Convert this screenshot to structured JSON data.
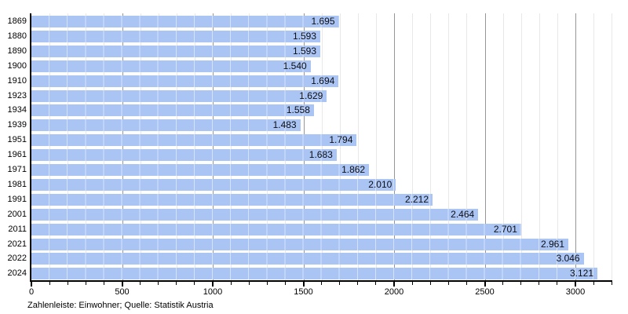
{
  "caption": "Zahlenleiste: Einwohner; Quelle: Statistik Austria",
  "chart_data": {
    "type": "bar",
    "orientation": "horizontal",
    "title": "",
    "xlabel": "",
    "ylabel": "",
    "categories": [
      "1869",
      "1880",
      "1890",
      "1900",
      "1910",
      "1923",
      "1934",
      "1939",
      "1951",
      "1961",
      "1971",
      "1981",
      "1991",
      "2001",
      "2011",
      "2021",
      "2022",
      "2024"
    ],
    "values": [
      1695,
      1593,
      1593,
      1540,
      1694,
      1629,
      1558,
      1483,
      1794,
      1683,
      1862,
      2010,
      2212,
      2464,
      2701,
      2961,
      3046,
      3121
    ],
    "value_labels": [
      "1.695",
      "1.593",
      "1.593",
      "1.540",
      "1.694",
      "1.629",
      "1.558",
      "1.483",
      "1.794",
      "1.683",
      "1.862",
      "2.010",
      "2.212",
      "2.464",
      "2.701",
      "2.961",
      "3.046",
      "3.121"
    ],
    "x_ticks": [
      0,
      500,
      1000,
      1500,
      2000,
      2500,
      3000
    ],
    "x_minor_step": 100,
    "xlim": [
      0,
      3200
    ],
    "grid": "vertical-minor-and-major",
    "legend": "none",
    "colors": {
      "bar": "#aac5f4",
      "bar_stripe": "rgba(255,255,255,0.5)",
      "grid_minor": "#e8e8e8",
      "grid_major": "#969696",
      "axis": "#000000",
      "tick_text": "#000000",
      "year_text": "#000000",
      "value_text": "#0d0d15",
      "caption_text": "#000000",
      "background": "#ffffff"
    }
  }
}
